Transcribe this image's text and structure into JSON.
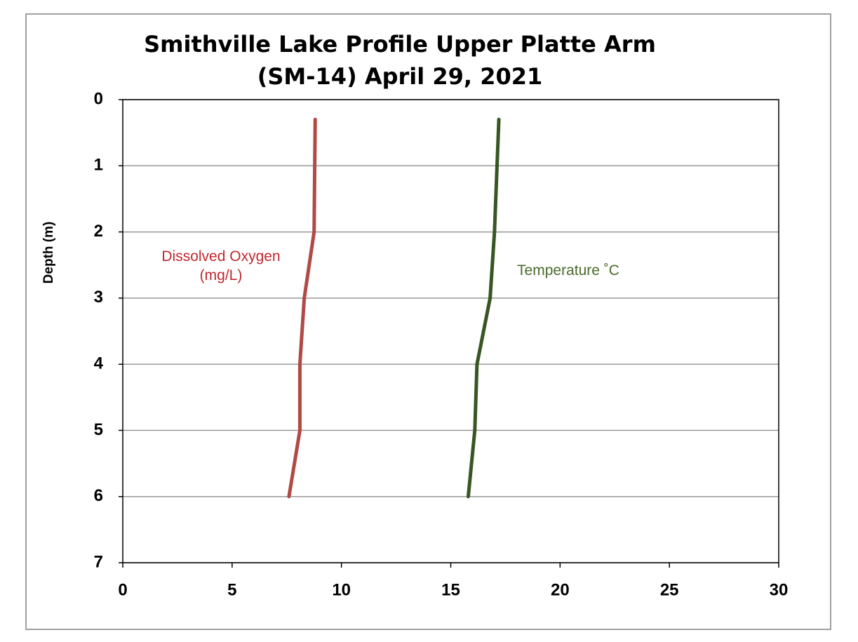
{
  "chart_data": {
    "type": "line",
    "title": "Smithville Lake Profile Upper Platte Arm (SM-14) April 29, 2021",
    "ylabel": "Depth (m)",
    "series": [
      {
        "name": "Dissolved Oxygen (mg/L)",
        "color": "#b04a45",
        "label_color": "#c0272d",
        "x": [
          8.8,
          8.75,
          8.3,
          8.1,
          8.1,
          7.6
        ],
        "y": [
          0.3,
          2,
          3,
          4,
          5,
          6
        ]
      },
      {
        "name": "Temperature ˚C",
        "color": "#375623",
        "label_color": "#4a6a2a",
        "x": [
          17.2,
          17.0,
          16.8,
          16.2,
          16.1,
          15.8
        ],
        "y": [
          0.3,
          2,
          3,
          4,
          5,
          6
        ]
      }
    ],
    "xlim": [
      0,
      30
    ],
    "xticks": [
      0,
      5,
      10,
      15,
      20,
      25,
      30
    ],
    "ylim": [
      0,
      7
    ],
    "yticks": [
      0,
      1,
      2,
      3,
      4,
      5,
      6,
      7
    ],
    "y_inverted": true,
    "grid": true
  }
}
